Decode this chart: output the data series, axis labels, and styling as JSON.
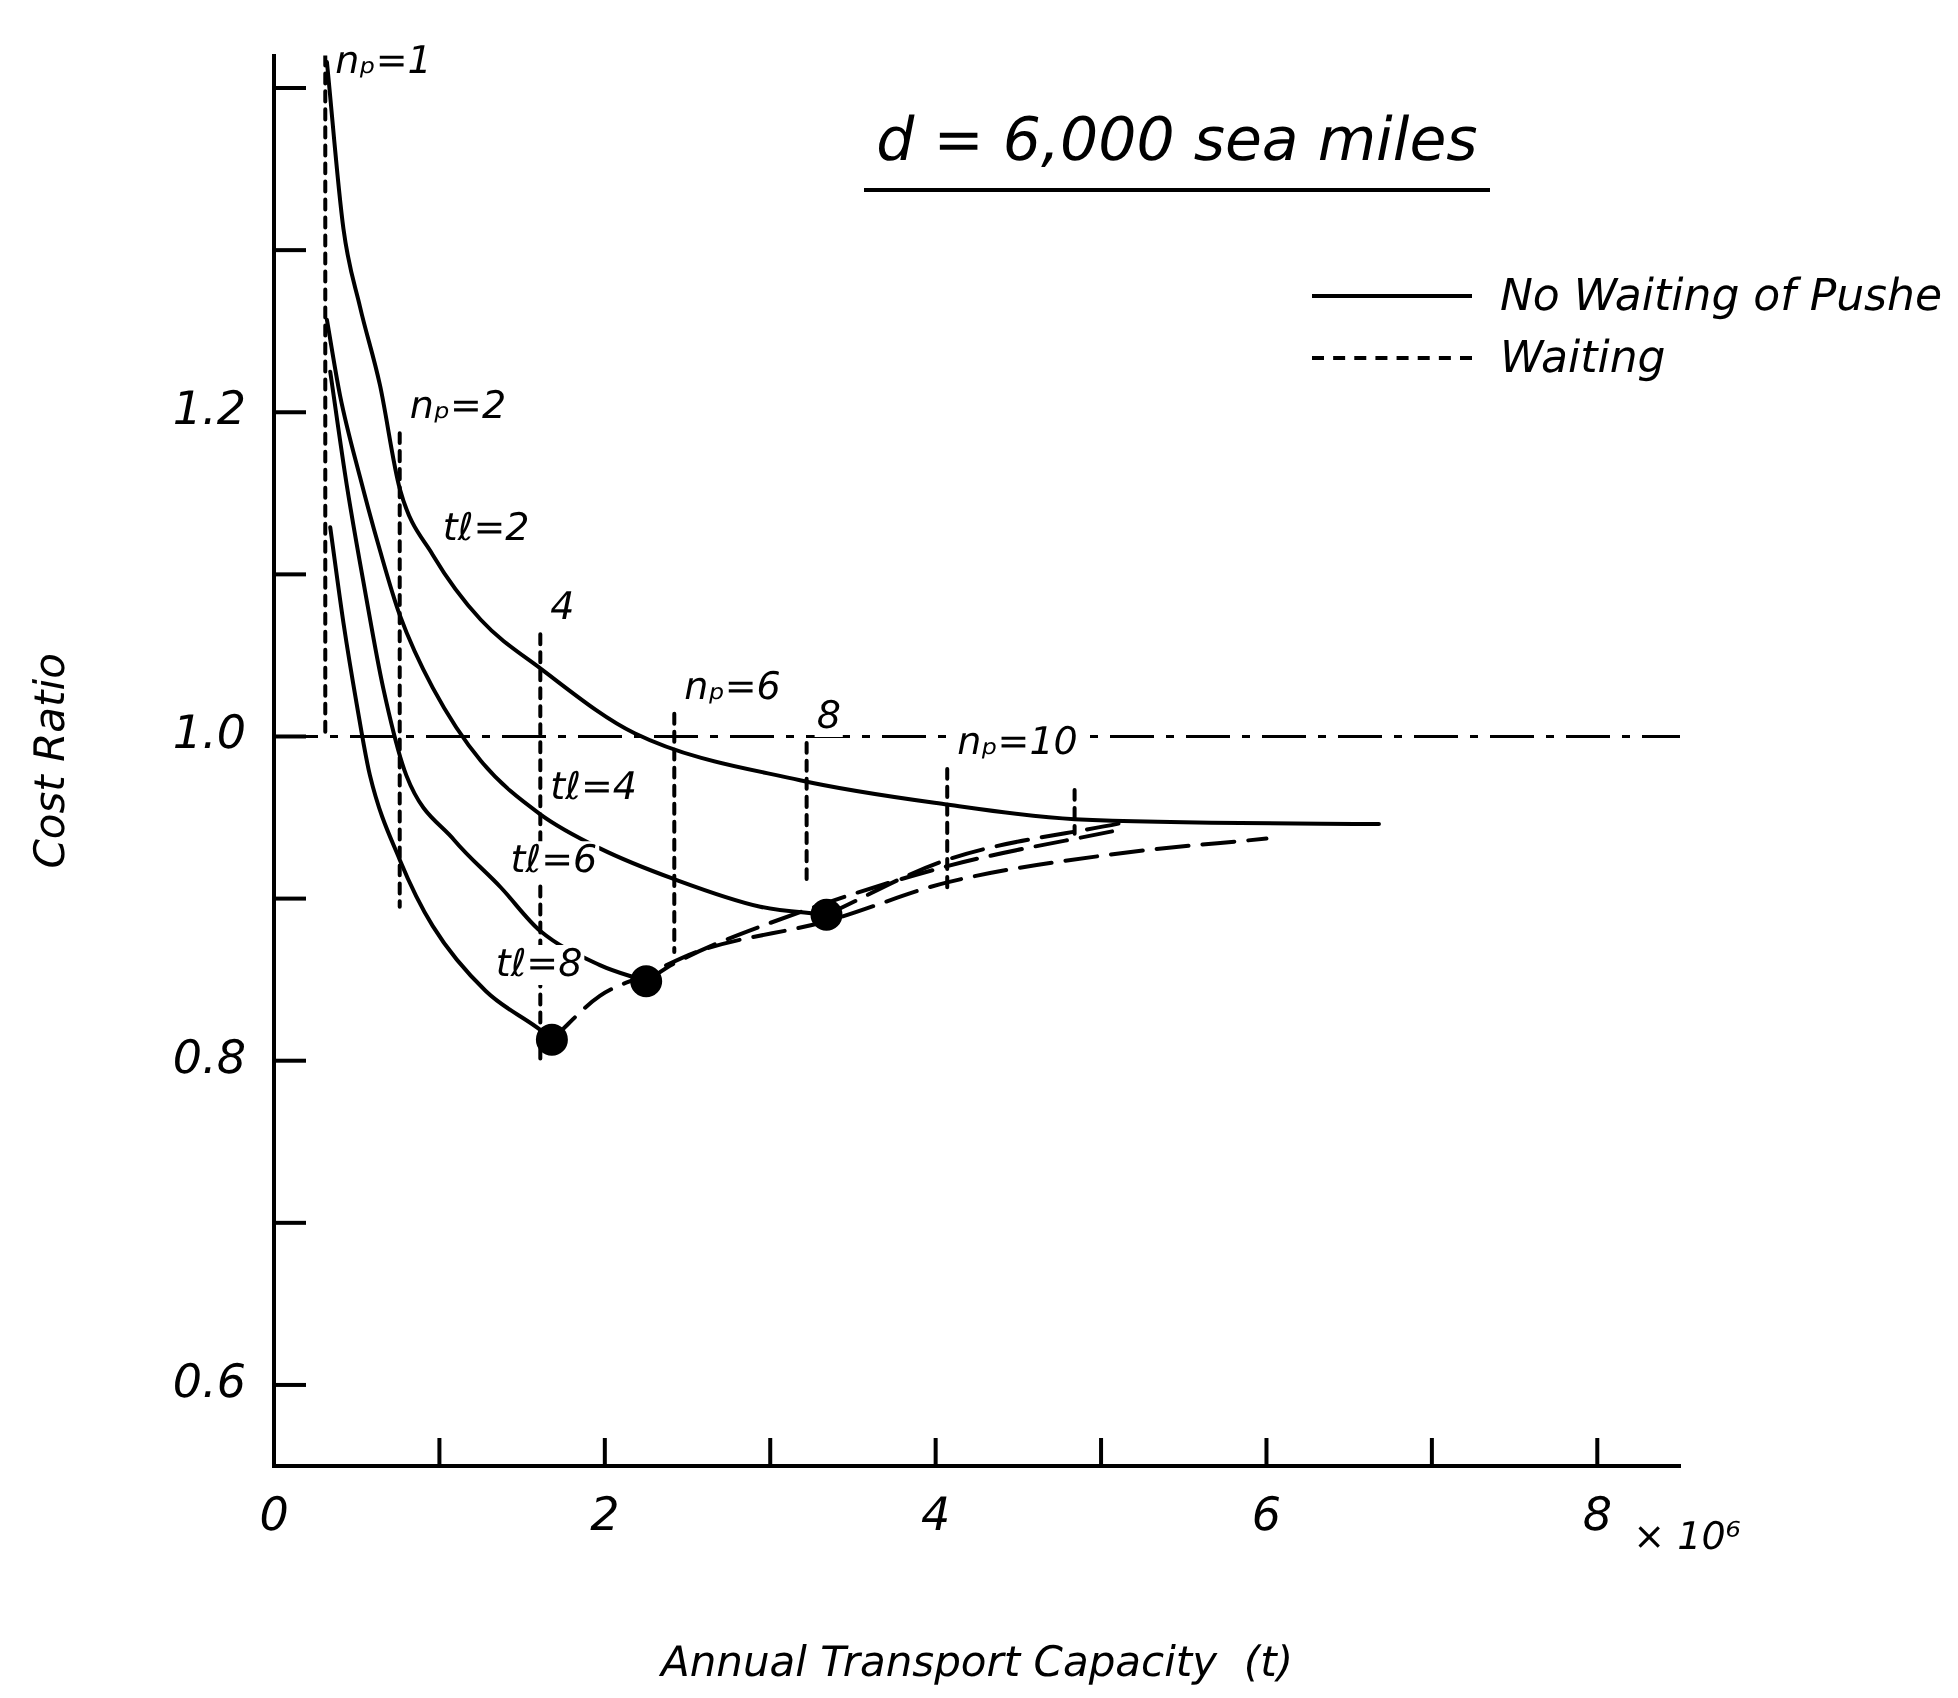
{
  "chart_data": {
    "type": "line",
    "title": "d = 6,000 sea miles",
    "xlabel": "Annual Transport Capacity  (t)",
    "ylabel": "Cost Ratio",
    "xlim": [
      0,
      8.5
    ],
    "ylim": [
      0.55,
      1.42
    ],
    "xticks": [
      0,
      {
        "value": 1,
        "label": null
      },
      2,
      {
        "value": 3,
        "label": null
      },
      4,
      {
        "value": 5,
        "label": null
      },
      6,
      {
        "value": 7,
        "label": null
      },
      8
    ],
    "yticks": [
      0.6,
      {
        "value": 0.7,
        "label": null
      },
      0.8,
      {
        "value": 0.9,
        "label": null
      },
      {
        "value": 1.0,
        "label": "1.0"
      },
      {
        "value": 1.1,
        "label": null
      },
      1.2,
      {
        "value": 1.3,
        "label": null
      },
      {
        "value": 1.4,
        "label": null
      }
    ],
    "grid": false,
    "legend": "top right",
    "marker": "none",
    "line_style": "solid",
    "ref_lines": [
      {
        "axis": "y",
        "value": 1.0,
        "line_style": "dashed",
        "color": "#000000"
      }
    ],
    "annotations": [
      "× 10⁶",
      {
        "text": "nₚ=1",
        "x": 0.31,
        "y": 1.4
      },
      {
        "text": "nₚ=2",
        "x": 0.76,
        "y": 1.187
      },
      {
        "text": "tℓ=2",
        "x": 0.96,
        "y": 1.112
      },
      {
        "text": "4",
        "x": 1.61,
        "y": 1.063
      },
      {
        "text": "tℓ=4",
        "x": 1.61,
        "y": 0.952
      },
      {
        "text": "nₚ=6",
        "x": 2.42,
        "y": 1.014
      },
      {
        "text": "8",
        "x": 3.22,
        "y": 0.996
      },
      {
        "text": "nₚ=10",
        "x": 4.07,
        "y": 0.98
      },
      {
        "text": "tℓ=6",
        "x": 1.37,
        "y": 0.907
      },
      {
        "text": "tℓ=8",
        "x": 1.28,
        "y": 0.843
      }
    ],
    "series": [
      {
        "name": "No Waiting of Pushe",
        "color": "#000000",
        "x": [
          0.32,
          0.42,
          0.52,
          0.64,
          0.76,
          0.96,
          1.25,
          1.61,
          2.18,
          3.18,
          4.07,
          4.84,
          6.68
        ],
        "values": [
          1.416,
          1.313,
          1.265,
          1.217,
          1.153,
          1.112,
          1.072,
          1.042,
          1.002,
          0.973,
          0.958,
          0.949,
          0.946
        ]
      },
      {
        "color": "#000000",
        "x": [
          0.32,
          0.4,
          0.52,
          0.64,
          0.76,
          0.96,
          1.25,
          1.61,
          1.97,
          2.42,
          2.94,
          3.34
        ],
        "values": [
          1.257,
          1.21,
          1.16,
          1.115,
          1.075,
          1.03,
          0.985,
          0.952,
          0.931,
          0.912,
          0.895,
          0.89
        ]
      },
      {
        "color": "#000000",
        "x": [
          0.34,
          0.44,
          0.55,
          0.66,
          0.8,
          1.09,
          1.37,
          1.61,
          1.97,
          2.25
        ],
        "values": [
          1.225,
          1.155,
          1.09,
          1.03,
          0.976,
          0.936,
          0.907,
          0.88,
          0.859,
          0.849
        ]
      },
      {
        "color": "#000000",
        "x": [
          0.34,
          0.42,
          0.5,
          0.58,
          0.76,
          0.96,
          1.28,
          1.61,
          1.68
        ],
        "values": [
          1.129,
          1.07,
          1.02,
          0.976,
          0.924,
          0.883,
          0.843,
          0.819,
          0.813
        ]
      },
      {
        "name": "Waiting",
        "color": "#000000",
        "line_style": "dashed",
        "x": [
          1.68,
          1.97,
          2.25,
          2.58,
          3.34,
          4.07,
          5.12,
          6.0
        ],
        "values": [
          0.813,
          0.84,
          0.853,
          0.868,
          0.886,
          0.91,
          0.928,
          0.937
        ]
      },
      {
        "color": "#000000",
        "line_style": "dashed",
        "x": [
          2.25,
          2.42,
          3.0,
          4.07,
          5.14
        ],
        "values": [
          0.849,
          0.86,
          0.885,
          0.92,
          0.943
        ]
      },
      {
        "color": "#000000",
        "line_style": "dashed",
        "x": [
          3.34,
          4.07,
          5.14
        ],
        "values": [
          0.89,
          0.924,
          0.947
        ]
      },
      {
        "type": "scatter",
        "marker": "circle",
        "color": "#000000",
        "x": [
          1.68,
          2.25,
          3.34
        ],
        "values": [
          0.813,
          0.849,
          0.89
        ]
      },
      {
        "color": "#000000",
        "line_style": "dotted",
        "x": [
          0.31,
          0.31
        ],
        "values": [
          1.42,
          1.0
        ]
      },
      {
        "color": "#000000",
        "line_style": "dotted",
        "x": [
          0.76,
          0.76
        ],
        "values": [
          1.187,
          0.895
        ]
      },
      {
        "color": "#000000",
        "line_style": "dotted",
        "x": [
          1.61,
          1.61
        ],
        "values": [
          1.063,
          0.798
        ]
      },
      {
        "color": "#000000",
        "line_style": "dotted",
        "x": [
          2.42,
          2.42
        ],
        "values": [
          1.014,
          0.867
        ]
      },
      {
        "color": "#000000",
        "line_style": "dotted",
        "x": [
          3.22,
          3.22
        ],
        "values": [
          0.996,
          0.912
        ]
      },
      {
        "color": "#000000",
        "line_style": "dotted",
        "x": [
          4.07,
          4.07
        ],
        "values": [
          0.98,
          0.907
        ]
      },
      {
        "color": "#000000",
        "line_style": "dotted",
        "x": [
          4.84,
          4.84
        ],
        "values": [
          0.967,
          0.94
        ]
      }
    ]
  }
}
